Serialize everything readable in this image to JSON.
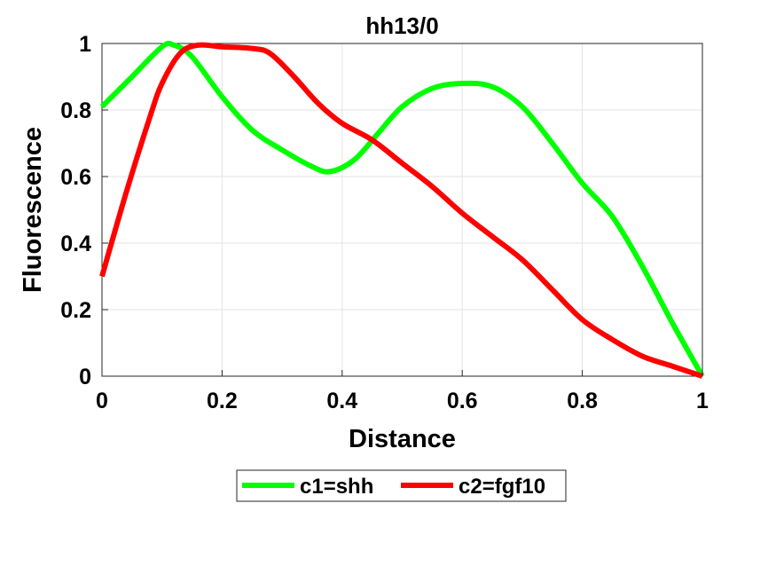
{
  "chart_data": {
    "type": "line",
    "title": "hh13/0",
    "xlabel": "Distance",
    "ylabel": "Fluorescence",
    "xlim": [
      0,
      1
    ],
    "ylim": [
      0,
      1
    ],
    "xticks": [
      "0",
      "0.2",
      "0.4",
      "0.6",
      "0.8",
      "1"
    ],
    "yticks": [
      "0",
      "0.2",
      "0.4",
      "0.6",
      "0.8",
      "1"
    ],
    "grid": true,
    "legend_position": "bottom-outside",
    "series": [
      {
        "name": "c1=shh",
        "color": "#00ff00",
        "x": [
          0,
          0.05,
          0.1,
          0.12,
          0.15,
          0.2,
          0.25,
          0.3,
          0.35,
          0.38,
          0.42,
          0.46,
          0.5,
          0.55,
          0.6,
          0.65,
          0.7,
          0.75,
          0.8,
          0.85,
          0.9,
          0.95,
          1.0
        ],
        "y": [
          0.81,
          0.9,
          0.99,
          0.995,
          0.96,
          0.84,
          0.74,
          0.68,
          0.63,
          0.615,
          0.65,
          0.73,
          0.81,
          0.865,
          0.88,
          0.87,
          0.81,
          0.7,
          0.58,
          0.48,
          0.33,
          0.16,
          0.0
        ]
      },
      {
        "name": "c2=fgf10",
        "color": "#ff0000",
        "x": [
          0,
          0.04,
          0.08,
          0.1,
          0.13,
          0.16,
          0.2,
          0.25,
          0.28,
          0.32,
          0.36,
          0.4,
          0.45,
          0.5,
          0.55,
          0.6,
          0.65,
          0.7,
          0.75,
          0.8,
          0.85,
          0.9,
          0.95,
          1.0
        ],
        "y": [
          0.3,
          0.55,
          0.78,
          0.88,
          0.97,
          0.995,
          0.99,
          0.985,
          0.97,
          0.9,
          0.82,
          0.76,
          0.71,
          0.64,
          0.57,
          0.49,
          0.42,
          0.35,
          0.26,
          0.17,
          0.11,
          0.06,
          0.03,
          0.0
        ]
      }
    ]
  }
}
